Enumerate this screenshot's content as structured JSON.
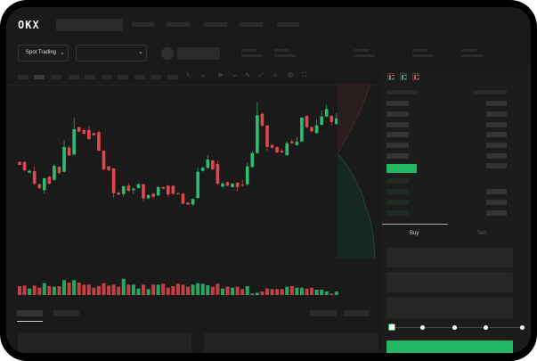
{
  "header": {
    "logo_text": "OKX",
    "nav_placeholder_count": 5
  },
  "market_bar": {
    "mode_selector": "Spot Trading",
    "pair_selector_value": ""
  },
  "toolbar": {
    "icons": [
      "indicator-icon",
      "chevron-down-icon",
      "draw-icon",
      "chevron-down-icon",
      "line-icon",
      "ruler-icon",
      "camera-icon",
      "settings-icon",
      "fullscreen-icon"
    ]
  },
  "orderbook": {
    "view_icons": [
      "orderbook-both-icon",
      "orderbook-bids-icon",
      "orderbook-asks-icon"
    ]
  },
  "trade_panel": {
    "tabs": [
      {
        "label": "Buy",
        "active": true
      },
      {
        "label": "Sell",
        "active": false
      }
    ],
    "slider_percent": 0
  },
  "colors": {
    "up": "#2dbd6e",
    "down": "#e0474c",
    "accent": "#25b864",
    "background": "#1a1a1a"
  },
  "chart_data": {
    "type": "candlestick",
    "title": "",
    "xlabel": "",
    "ylabel": "",
    "candles": [
      [
        155,
        145,
        158,
        143
      ],
      [
        155,
        127,
        157,
        124
      ],
      [
        119,
        125,
        128,
        117
      ],
      [
        124,
        82,
        140,
        78
      ],
      [
        80,
        67,
        82,
        62
      ],
      [
        60,
        100,
        102,
        48
      ],
      [
        105,
        82,
        108,
        80
      ],
      [
        95,
        142,
        148,
        92
      ],
      [
        138,
        118,
        142,
        113
      ],
      [
        122,
        205,
        228,
        120
      ],
      [
        203,
        177,
        210,
        175
      ],
      [
        180,
        265,
        303,
        178
      ],
      [
        272,
        257,
        274,
        255
      ],
      [
        262,
        250,
        268,
        247
      ],
      [
        262,
        232,
        277,
        228
      ],
      [
        252,
        245,
        254,
        243
      ],
      [
        255,
        193,
        262,
        190
      ],
      [
        193,
        130,
        195,
        127
      ],
      [
        140,
        128,
        142,
        124
      ],
      [
        133,
        50,
        135,
        35
      ],
      [
        52,
        45,
        55,
        43
      ],
      [
        47,
        73,
        75,
        38
      ],
      [
        75,
        58,
        82,
        55
      ],
      [
        60,
        65,
        70,
        48
      ],
      [
        67,
        80,
        84,
        65
      ],
      [
        80,
        32,
        82,
        22
      ],
      [
        33,
        43,
        47,
        30
      ],
      [
        48,
        38,
        50,
        30
      ],
      [
        42,
        70,
        75,
        40
      ],
      [
        70,
        65,
        73,
        63
      ],
      [
        75,
        45,
        78,
        38
      ],
      [
        75,
        48,
        78,
        44
      ],
      [
        50,
        47,
        52,
        45
      ],
      [
        48,
        15,
        50,
        12
      ],
      [
        18,
        12,
        20,
        10
      ],
      [
        12,
        30,
        33,
        8
      ],
      [
        34,
        122,
        135,
        30
      ],
      [
        125,
        135,
        140,
        122
      ],
      [
        135,
        163,
        178,
        132
      ],
      [
        160,
        130,
        163,
        128
      ],
      [
        148,
        82,
        160,
        75
      ],
      [
        72,
        82,
        88,
        68
      ],
      [
        87,
        75,
        89,
        73
      ],
      [
        70,
        82,
        84,
        68
      ],
      [
        85,
        70,
        88,
        55
      ],
      [
        78,
        75,
        94,
        72
      ],
      [
        80,
        140,
        152,
        75
      ],
      [
        138,
        185,
        193,
        135
      ],
      [
        185,
        312,
        355,
        182
      ],
      [
        317,
        277,
        322,
        272
      ],
      [
        278,
        205,
        280,
        192
      ],
      [
        212,
        203,
        215,
        200
      ],
      [
        205,
        187,
        207,
        184
      ],
      [
        192,
        187,
        200,
        185
      ],
      [
        178,
        218,
        225,
        175
      ],
      [
        224,
        218,
        232,
        215
      ],
      [
        212,
        223,
        240,
        210
      ],
      [
        224,
        304,
        305,
        222
      ],
      [
        310,
        272,
        312,
        268
      ],
      [
        272,
        258,
        274,
        255
      ],
      [
        252,
        278,
        298,
        250
      ],
      [
        280,
        308,
        328,
        278
      ],
      [
        308,
        333,
        347,
        305
      ],
      [
        310,
        290,
        312,
        278
      ],
      [
        283,
        302,
        320,
        280
      ]
    ],
    "candle_format": [
      "open",
      "close",
      "high",
      "low"
    ],
    "volumes": [
      30,
      32,
      22,
      32,
      25,
      40,
      30,
      28,
      30,
      50,
      42,
      50,
      42,
      35,
      35,
      25,
      30,
      40,
      32,
      35,
      28,
      55,
      35,
      35,
      22,
      35,
      20,
      35,
      35,
      38,
      25,
      30,
      38,
      35,
      28,
      35,
      40,
      38,
      33,
      28,
      38,
      22,
      28,
      25,
      28,
      20,
      30,
      5,
      8,
      12,
      22,
      20,
      20,
      20,
      28,
      30,
      25,
      25,
      22,
      25,
      18,
      18,
      12,
      5,
      12
    ]
  }
}
